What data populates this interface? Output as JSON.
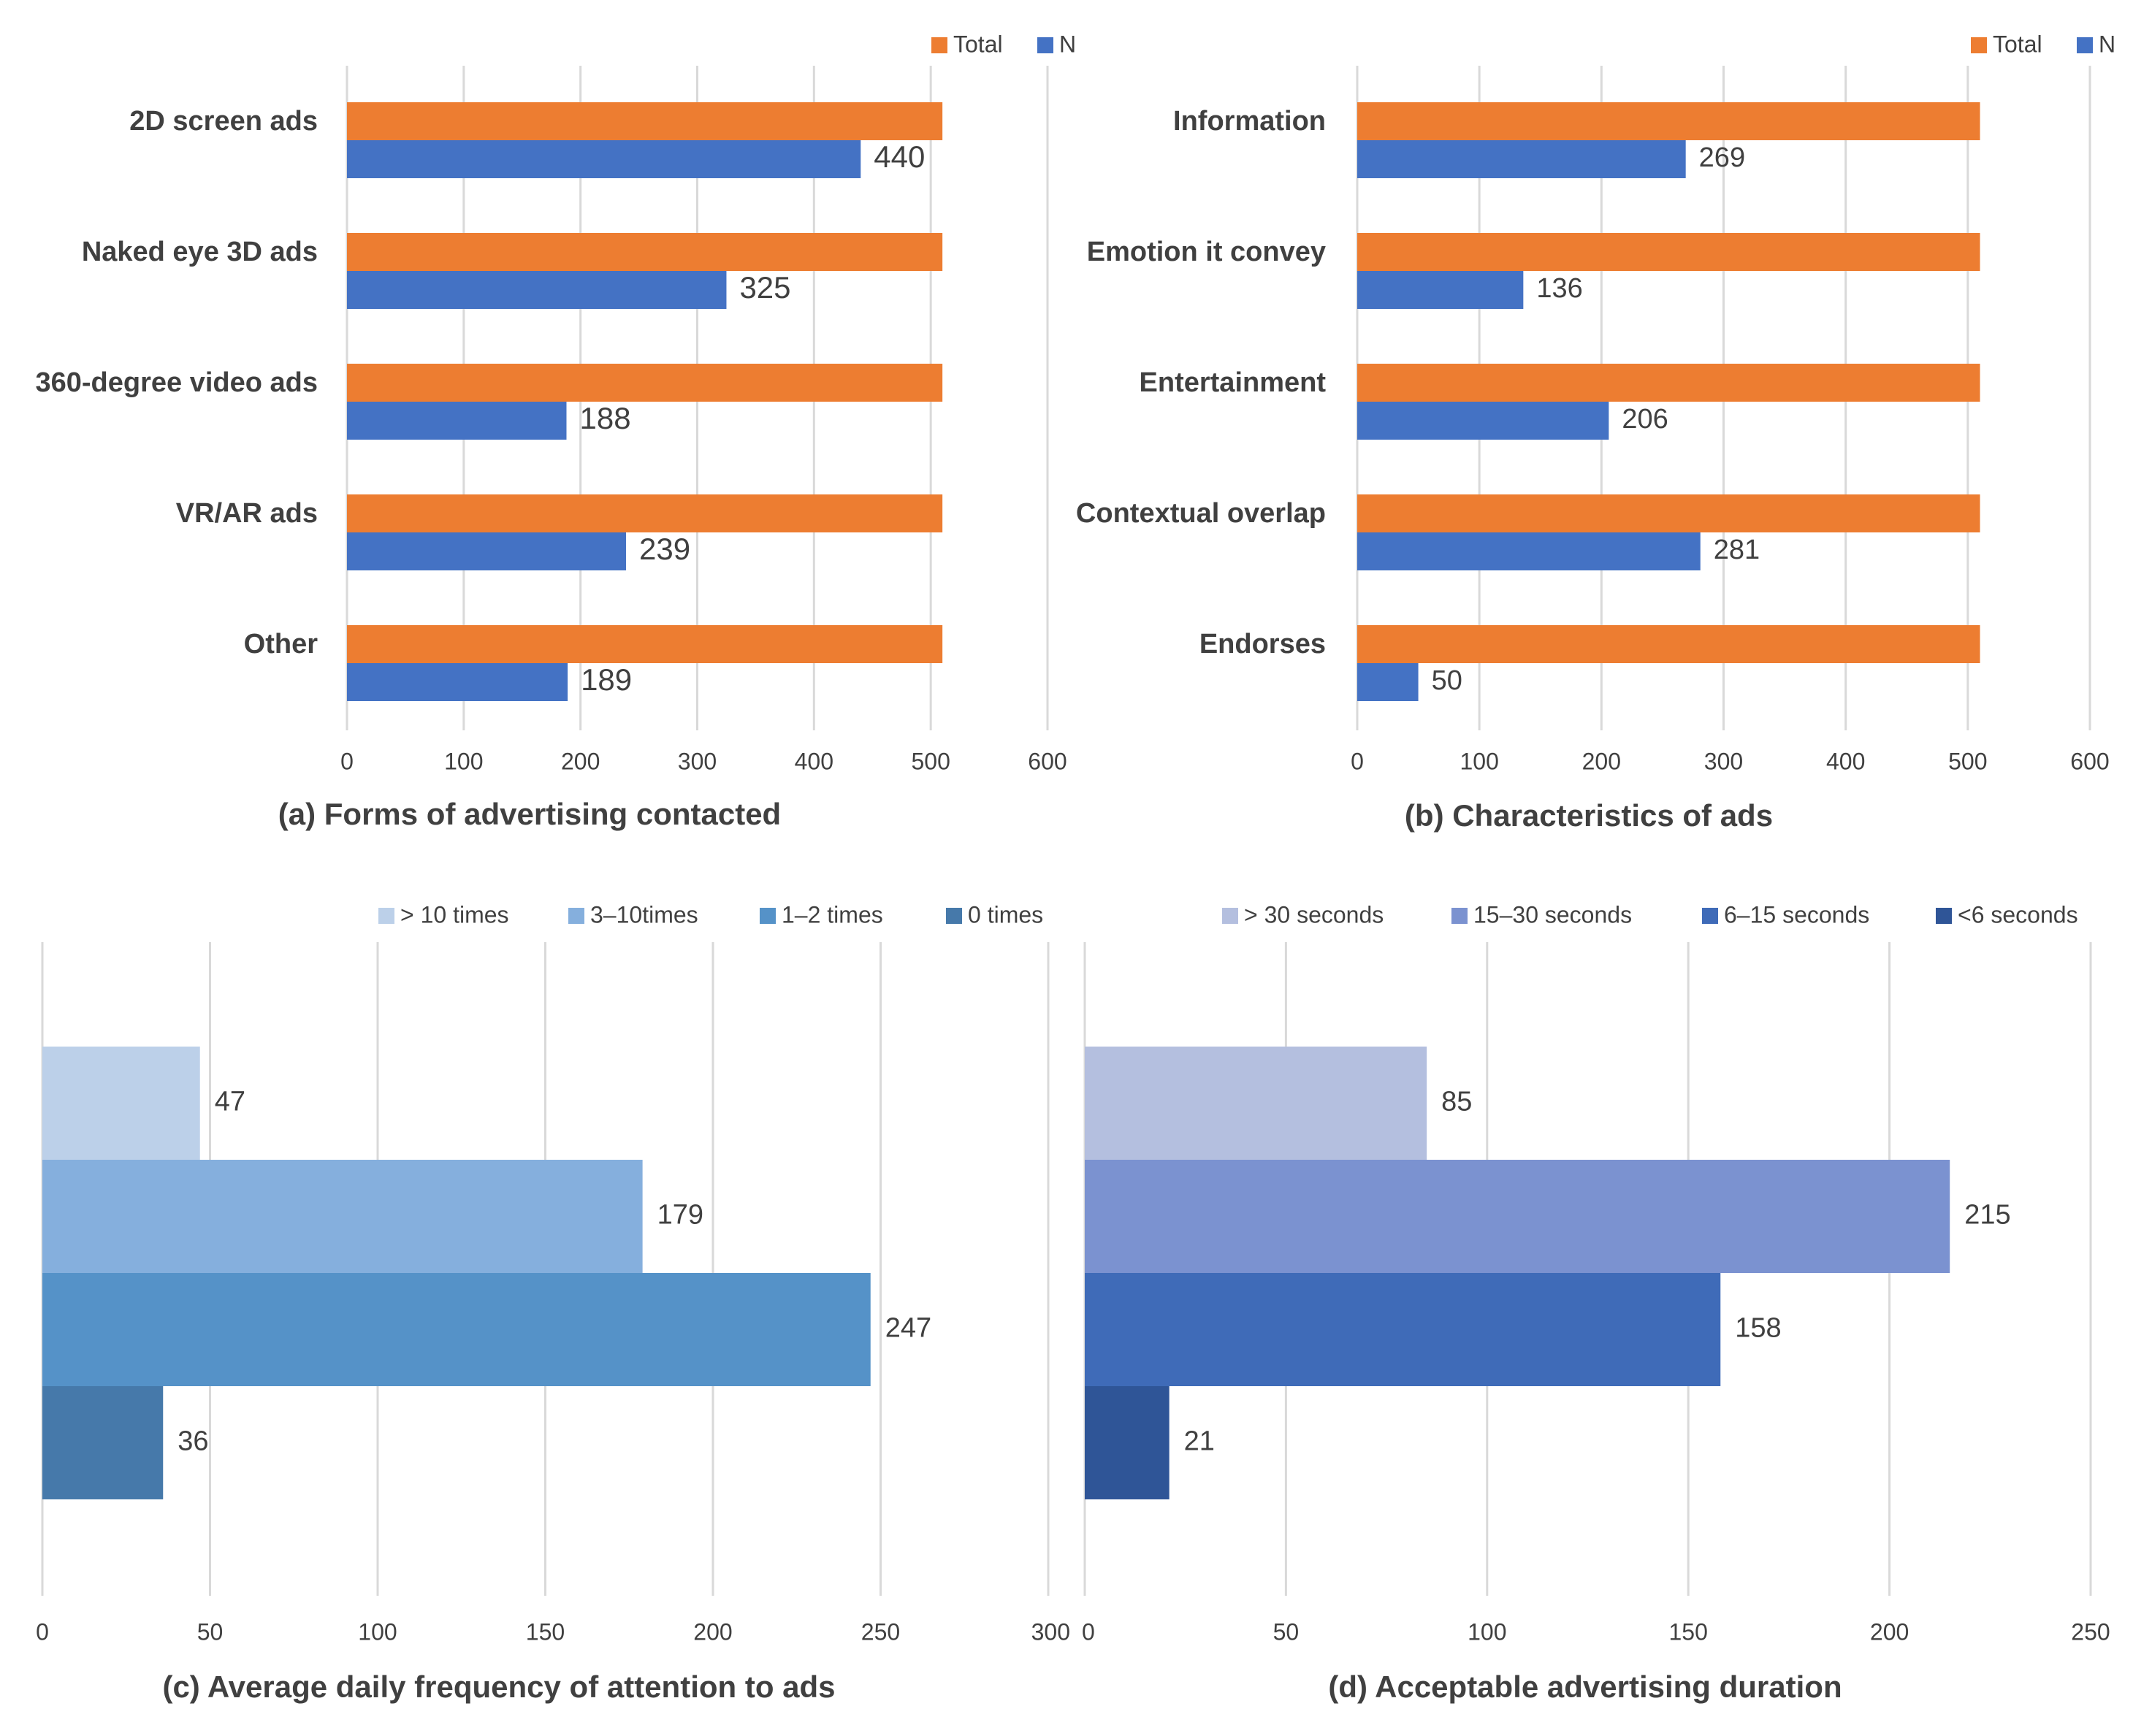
{
  "colors": {
    "total": "#ED7D31",
    "n": "#4472C4",
    "grid": "#D9D9D9",
    "text": "#404040",
    "c_series": [
      "#BCD0E9",
      "#85AFDD",
      "#5592C8",
      "#4679AA"
    ],
    "d_series": [
      "#B4BFDF",
      "#7B92D0",
      "#3F6BB8",
      "#2F5597"
    ]
  },
  "chart_data": [
    {
      "id": "a",
      "type": "bar",
      "orientation": "horizontal",
      "title": "(a) Forms of advertising contacted",
      "categories": [
        "2D screen ads",
        "Naked eye 3D ads",
        "360-degree video ads",
        "VR/AR ads",
        "Other"
      ],
      "series": [
        {
          "name": "Total",
          "values": [
            510,
            510,
            510,
            510,
            510
          ]
        },
        {
          "name": "N",
          "values": [
            440,
            325,
            188,
            239,
            189
          ],
          "labels": [
            "440",
            "325",
            "188",
            "239",
            "189"
          ]
        }
      ],
      "xlim": [
        0,
        600
      ],
      "xticks": [
        "0",
        "100",
        "200",
        "300",
        "400",
        "500",
        "600"
      ],
      "legend": [
        "Total",
        "N"
      ],
      "legend_position": "top-right",
      "grid": true
    },
    {
      "id": "b",
      "type": "bar",
      "orientation": "horizontal",
      "title": "(b) Characteristics of ads",
      "categories": [
        "Information",
        "Emotion it convey",
        "Entertainment",
        "Contextual overlap",
        "Endorses"
      ],
      "series": [
        {
          "name": "Total",
          "values": [
            510,
            510,
            510,
            510,
            510
          ]
        },
        {
          "name": "N",
          "values": [
            269,
            136,
            206,
            281,
            50
          ],
          "labels": [
            "269",
            "136",
            "206",
            "281",
            "50"
          ]
        }
      ],
      "xlim": [
        0,
        600
      ],
      "xticks": [
        "0",
        "100",
        "200",
        "300",
        "400",
        "500",
        "600"
      ],
      "legend": [
        "Total",
        "N"
      ],
      "legend_position": "top-right",
      "grid": true
    },
    {
      "id": "c",
      "type": "bar",
      "orientation": "horizontal",
      "title": "(c) Average daily frequency of attention to ads",
      "series": [
        {
          "name": "> 10 times",
          "value": 47,
          "label": "47"
        },
        {
          "name": "3–10times",
          "value": 179,
          "label": "179"
        },
        {
          "name": "1–2 times",
          "value": 247,
          "label": "247"
        },
        {
          "name": "0 times",
          "value": 36,
          "label": "36"
        }
      ],
      "xlim": [
        0,
        300
      ],
      "xticks": [
        "0",
        "50",
        "100",
        "150",
        "200",
        "250",
        "300"
      ],
      "legend_position": "top",
      "grid": true
    },
    {
      "id": "d",
      "type": "bar",
      "orientation": "horizontal",
      "title": "(d) Acceptable advertising duration",
      "series": [
        {
          "name": "> 30 seconds",
          "value": 85,
          "label": "85"
        },
        {
          "name": "15–30 seconds",
          "value": 215,
          "label": "215"
        },
        {
          "name": "6–15 seconds",
          "value": 158,
          "label": "158"
        },
        {
          "name": "<6 seconds",
          "value": 21,
          "label": "21"
        }
      ],
      "xlim": [
        0,
        250
      ],
      "xticks": [
        "0",
        "50",
        "100",
        "150",
        "200",
        "250"
      ],
      "legend_position": "top",
      "grid": true
    }
  ]
}
